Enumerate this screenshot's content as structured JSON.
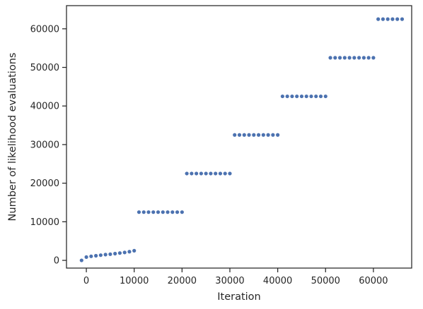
{
  "chart_data": {
    "type": "scatter",
    "title": "",
    "xlabel": "Iteration",
    "ylabel": "Number of likelihood evaluations",
    "xlim": [
      -4150,
      68000
    ],
    "ylim": [
      -2000,
      66000
    ],
    "x_ticks": [
      0,
      10000,
      20000,
      30000,
      40000,
      50000,
      60000
    ],
    "y_ticks": [
      0,
      10000,
      20000,
      30000,
      40000,
      50000,
      60000
    ],
    "x_tick_labels": [
      "0",
      "10000",
      "20000",
      "30000",
      "40000",
      "50000",
      "60000"
    ],
    "y_tick_labels": [
      "0",
      "10000",
      "20000",
      "30000",
      "40000",
      "50000",
      "60000"
    ],
    "grid": false,
    "marker_color": "#4c72b0",
    "series": [
      {
        "points": [
          [
            -1000,
            0
          ],
          [
            0,
            850
          ],
          [
            1000,
            1050
          ],
          [
            2000,
            1200
          ],
          [
            3000,
            1350
          ],
          [
            4000,
            1500
          ],
          [
            5000,
            1600
          ],
          [
            6000,
            1750
          ],
          [
            7000,
            1900
          ],
          [
            8000,
            2050
          ],
          [
            9000,
            2250
          ],
          [
            10000,
            2500
          ],
          [
            11000,
            12500
          ],
          [
            12000,
            12500
          ],
          [
            13000,
            12500
          ],
          [
            14000,
            12500
          ],
          [
            15000,
            12500
          ],
          [
            16000,
            12500
          ],
          [
            17000,
            12500
          ],
          [
            18000,
            12500
          ],
          [
            19000,
            12500
          ],
          [
            20000,
            12500
          ],
          [
            21000,
            22500
          ],
          [
            22000,
            22500
          ],
          [
            23000,
            22500
          ],
          [
            24000,
            22500
          ],
          [
            25000,
            22500
          ],
          [
            26000,
            22500
          ],
          [
            27000,
            22500
          ],
          [
            28000,
            22500
          ],
          [
            29000,
            22500
          ],
          [
            30000,
            22500
          ],
          [
            31000,
            32500
          ],
          [
            32000,
            32500
          ],
          [
            33000,
            32500
          ],
          [
            34000,
            32500
          ],
          [
            35000,
            32500
          ],
          [
            36000,
            32500
          ],
          [
            37000,
            32500
          ],
          [
            38000,
            32500
          ],
          [
            39000,
            32500
          ],
          [
            40000,
            32500
          ],
          [
            41000,
            42500
          ],
          [
            42000,
            42500
          ],
          [
            43000,
            42500
          ],
          [
            44000,
            42500
          ],
          [
            45000,
            42500
          ],
          [
            46000,
            42500
          ],
          [
            47000,
            42500
          ],
          [
            48000,
            42500
          ],
          [
            49000,
            42500
          ],
          [
            50000,
            42500
          ],
          [
            51000,
            52500
          ],
          [
            52000,
            52500
          ],
          [
            53000,
            52500
          ],
          [
            54000,
            52500
          ],
          [
            55000,
            52500
          ],
          [
            56000,
            52500
          ],
          [
            57000,
            52500
          ],
          [
            58000,
            52500
          ],
          [
            59000,
            52500
          ],
          [
            60000,
            52500
          ],
          [
            61000,
            62500
          ],
          [
            62000,
            62500
          ],
          [
            63000,
            62500
          ],
          [
            64000,
            62500
          ],
          [
            65000,
            62500
          ],
          [
            66000,
            62500
          ]
        ]
      }
    ]
  }
}
